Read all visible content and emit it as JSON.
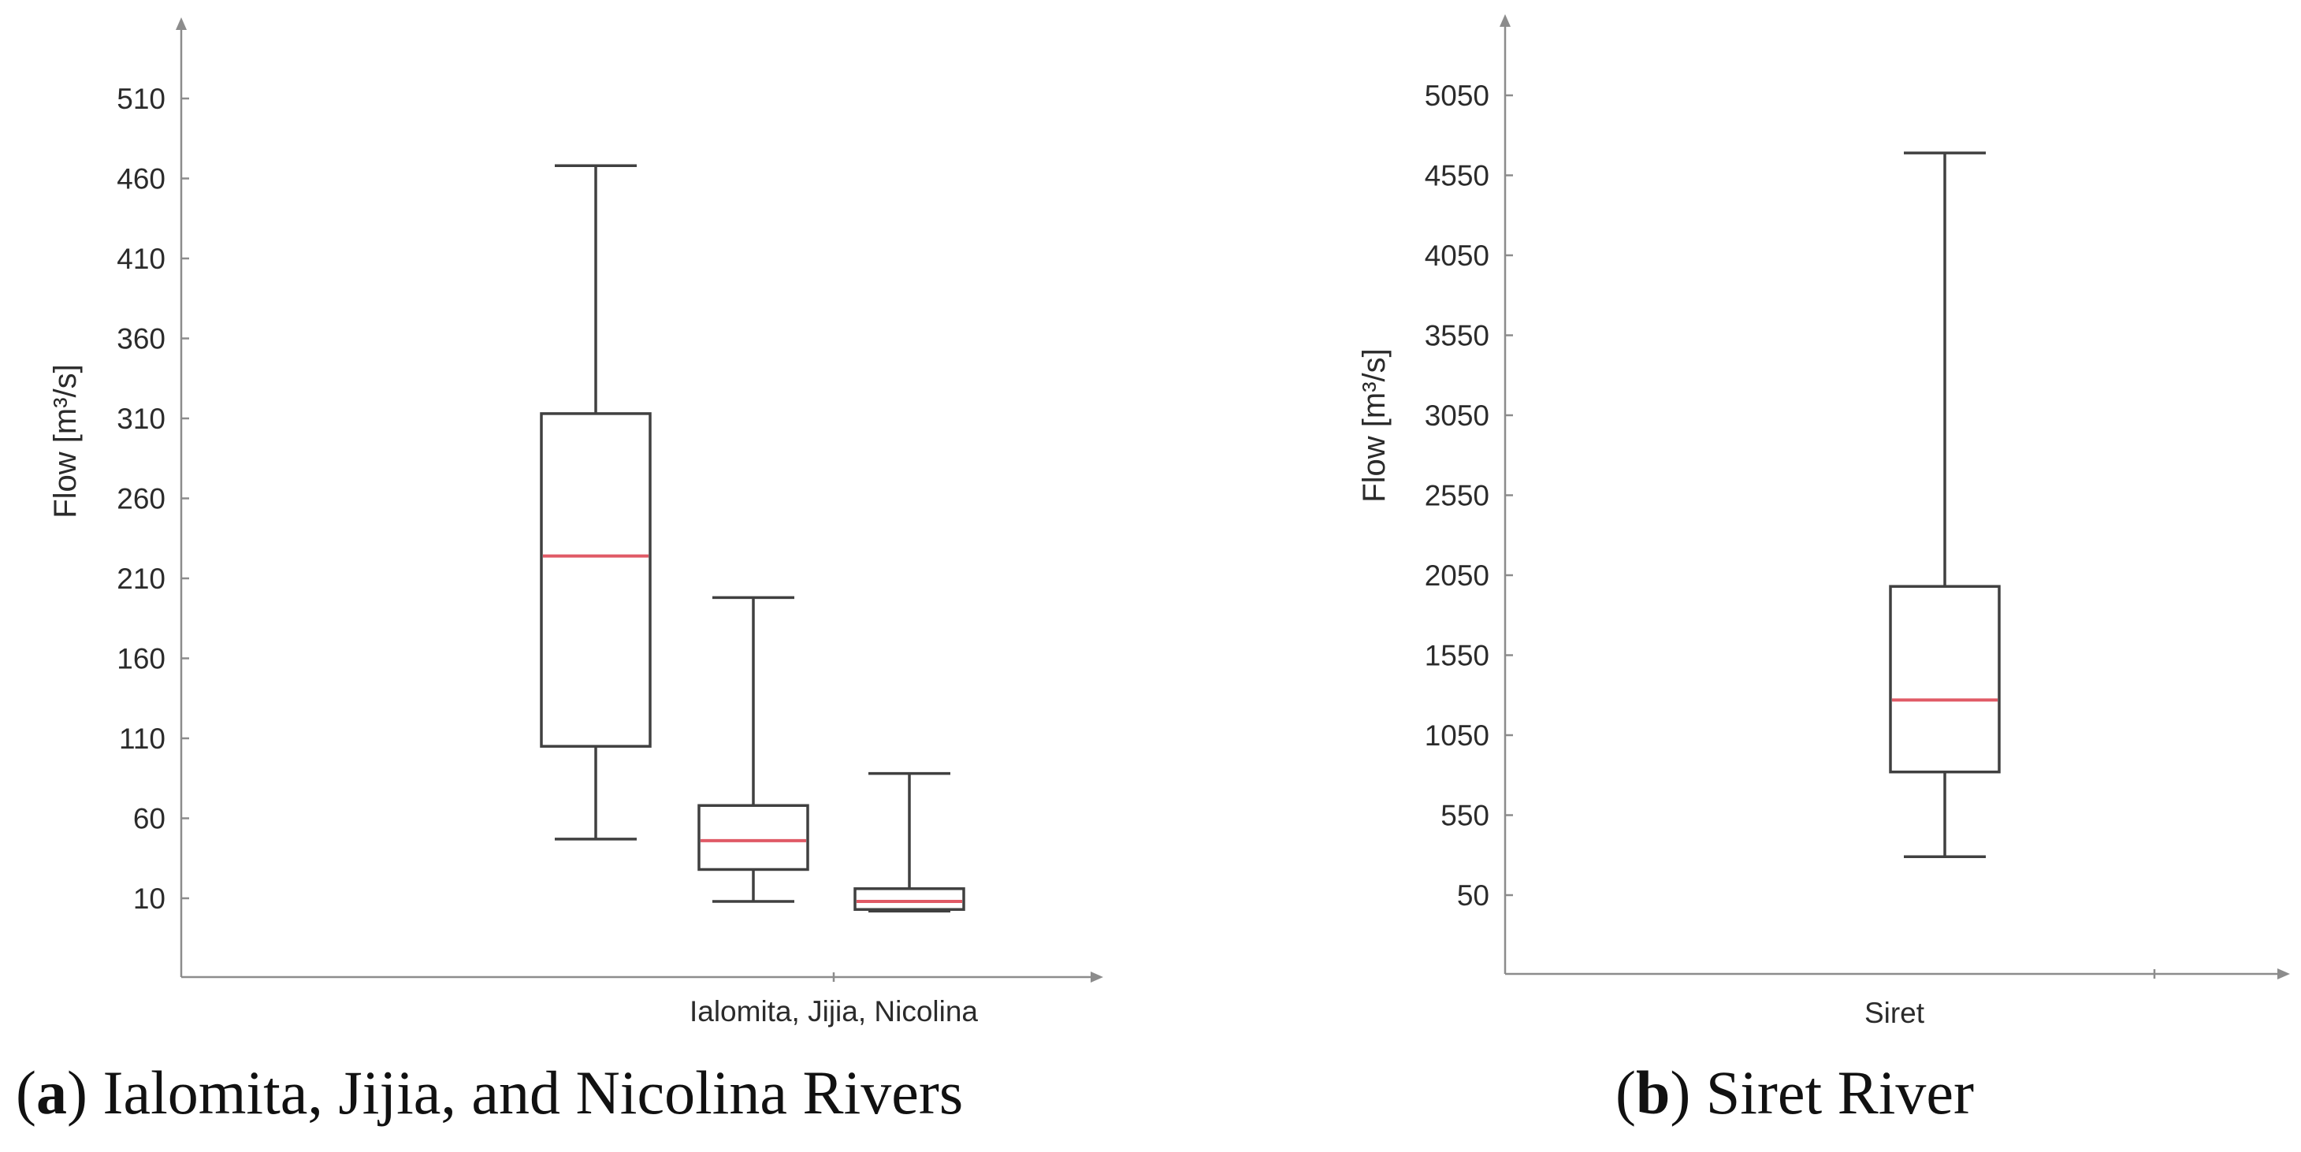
{
  "chart_data": [
    {
      "type": "box",
      "panel_letter": "a",
      "caption": "Ialomita, Jijia, and Nicolina Rivers",
      "ylabel": "Flow [m³/s]",
      "xlabel": "Ialomita, Jijia, Nicolina",
      "yticks": [
        10,
        60,
        110,
        160,
        210,
        260,
        310,
        360,
        410,
        460,
        510
      ],
      "ylim": [
        -40,
        560
      ],
      "series": [
        {
          "name": "Ialomita",
          "whisker_low": 47,
          "q1": 105,
          "median": 224,
          "q3": 313,
          "whisker_high": 468
        },
        {
          "name": "Jijia",
          "whisker_low": 8,
          "q1": 28,
          "median": 46,
          "q3": 68,
          "whisker_high": 198
        },
        {
          "name": "Nicolina",
          "whisker_low": 2,
          "q1": 3,
          "median": 8,
          "q3": 16,
          "whisker_high": 88
        }
      ],
      "colors": {
        "box": "#404040",
        "median": "#e05a66",
        "axis": "#8c8c8c"
      }
    },
    {
      "type": "box",
      "panel_letter": "b",
      "caption": "Siret River",
      "ylabel": "Flow [m³/s]",
      "xlabel": "Siret",
      "yticks": [
        50,
        550,
        1050,
        1550,
        2050,
        2550,
        3050,
        3550,
        4050,
        4550,
        5050
      ],
      "ylim": [
        -450,
        5550
      ],
      "series": [
        {
          "name": "Siret",
          "whisker_low": 290,
          "q1": 820,
          "median": 1270,
          "q3": 1980,
          "whisker_high": 4690
        }
      ],
      "colors": {
        "box": "#404040",
        "median": "#e05a66",
        "axis": "#8c8c8c"
      }
    }
  ]
}
